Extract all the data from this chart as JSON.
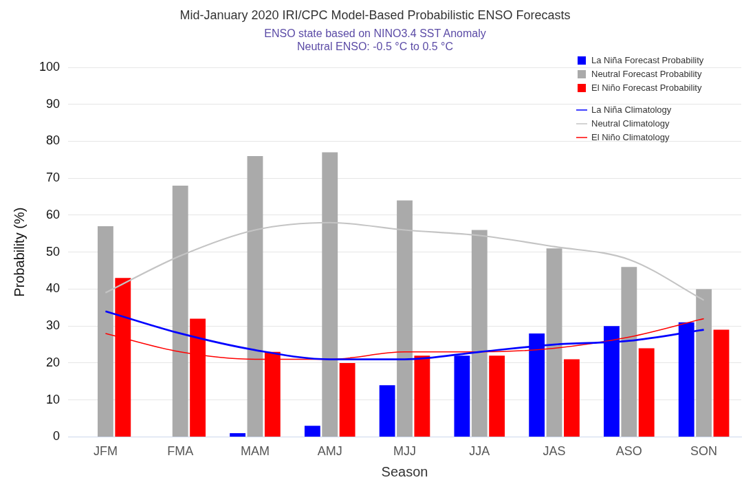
{
  "chart_data": {
    "type": "bar",
    "title": "Mid-January 2020 IRI/CPC Model-Based Probabilistic ENSO Forecasts",
    "subtitle": "ENSO state based on NINO3.4 SST Anomaly\nNeutral ENSO: -0.5 °C to 0.5 °C",
    "xlabel": "Season",
    "ylabel": "Probability (%)",
    "categories": [
      "JFM",
      "FMA",
      "MAM",
      "AMJ",
      "MJJ",
      "JJA",
      "JAS",
      "ASO",
      "SON"
    ],
    "series": [
      {
        "name": "La Niña Forecast Probability",
        "color": "#0000ff",
        "values": [
          0,
          0,
          1,
          3,
          14,
          22,
          28,
          30,
          31
        ]
      },
      {
        "name": "Neutral Forecast Probability",
        "color": "#aaaaaa",
        "values": [
          57,
          68,
          76,
          77,
          64,
          56,
          51,
          46,
          40
        ]
      },
      {
        "name": "El Niño Forecast Probability",
        "color": "#ff0000",
        "values": [
          43,
          32,
          23,
          20,
          22,
          22,
          21,
          24,
          29
        ]
      },
      {
        "name": "La Niña Climatology",
        "type": "line",
        "color": "#0000ff",
        "values": [
          34,
          28,
          23.5,
          21,
          21,
          23,
          25,
          26,
          29
        ]
      },
      {
        "name": "Neutral Climatology",
        "type": "line",
        "color": "#c4c4c4",
        "values": [
          39,
          49,
          56,
          58,
          56,
          54.5,
          51.5,
          48,
          37
        ]
      },
      {
        "name": "El Niño Climatology",
        "type": "line",
        "color": "#ff0000",
        "values": [
          28,
          23,
          21,
          21,
          23,
          23,
          24,
          27,
          32
        ]
      }
    ],
    "ylim": [
      0,
      100
    ],
    "yticks": [
      0,
      10,
      20,
      30,
      40,
      50,
      60,
      70,
      80,
      90,
      100
    ],
    "grid": "y",
    "legend": "top right",
    "marker": "none"
  }
}
